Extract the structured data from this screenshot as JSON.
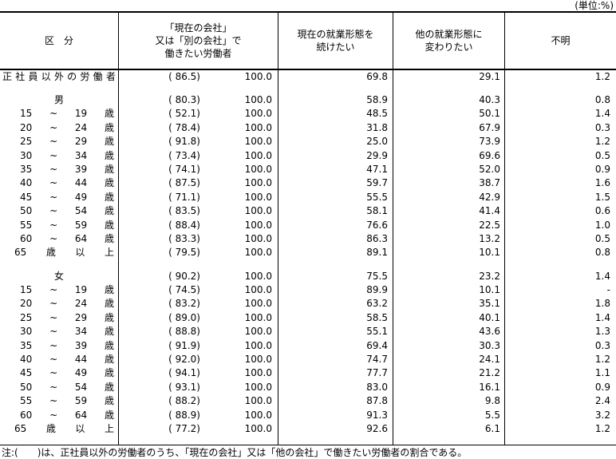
{
  "unit_label": "(単位:%)",
  "colors": {
    "border": "#000000",
    "text": "#000000",
    "background": "#ffffff"
  },
  "header": {
    "category": "区　分",
    "want_work_line1": "「現在の会社」",
    "want_work_line2": "又は「別の会社」で",
    "want_work_line3": "働きたい労働者",
    "continue_line1": "現在の就業形態を",
    "continue_line2": "続けたい",
    "change_line1": "他の就業形態に",
    "change_line2": "変わりたい",
    "unknown": "不明"
  },
  "rows": [
    {
      "type": "data",
      "style": "total",
      "label_parts": [
        "正",
        "社",
        "員",
        "以",
        "外",
        "の",
        "労",
        "働",
        "者"
      ],
      "paren": "( 86.5)",
      "total": "100.0",
      "continue_pct": "69.8",
      "change_pct": "29.1",
      "unknown_pct": "1.2"
    },
    {
      "type": "spacer"
    },
    {
      "type": "data",
      "style": "gender",
      "label_parts": [
        "男"
      ],
      "paren": "( 80.3)",
      "total": "100.0",
      "continue_pct": "58.9",
      "change_pct": "40.3",
      "unknown_pct": "0.8"
    },
    {
      "type": "data",
      "style": "age",
      "label_parts": [
        "15",
        "~",
        "19",
        "歳"
      ],
      "paren": "( 52.1)",
      "total": "100.0",
      "continue_pct": "48.5",
      "change_pct": "50.1",
      "unknown_pct": "1.4"
    },
    {
      "type": "data",
      "style": "age",
      "label_parts": [
        "20",
        "~",
        "24",
        "歳"
      ],
      "paren": "( 78.4)",
      "total": "100.0",
      "continue_pct": "31.8",
      "change_pct": "67.9",
      "unknown_pct": "0.3"
    },
    {
      "type": "data",
      "style": "age",
      "label_parts": [
        "25",
        "~",
        "29",
        "歳"
      ],
      "paren": "( 91.8)",
      "total": "100.0",
      "continue_pct": "25.0",
      "change_pct": "73.9",
      "unknown_pct": "1.2"
    },
    {
      "type": "data",
      "style": "age",
      "label_parts": [
        "30",
        "~",
        "34",
        "歳"
      ],
      "paren": "( 73.4)",
      "total": "100.0",
      "continue_pct": "29.9",
      "change_pct": "69.6",
      "unknown_pct": "0.5"
    },
    {
      "type": "data",
      "style": "age",
      "label_parts": [
        "35",
        "~",
        "39",
        "歳"
      ],
      "paren": "( 74.1)",
      "total": "100.0",
      "continue_pct": "47.1",
      "change_pct": "52.0",
      "unknown_pct": "0.9"
    },
    {
      "type": "data",
      "style": "age",
      "label_parts": [
        "40",
        "~",
        "44",
        "歳"
      ],
      "paren": "( 87.5)",
      "total": "100.0",
      "continue_pct": "59.7",
      "change_pct": "38.7",
      "unknown_pct": "1.6"
    },
    {
      "type": "data",
      "style": "age",
      "label_parts": [
        "45",
        "~",
        "49",
        "歳"
      ],
      "paren": "( 71.1)",
      "total": "100.0",
      "continue_pct": "55.5",
      "change_pct": "42.9",
      "unknown_pct": "1.5"
    },
    {
      "type": "data",
      "style": "age",
      "label_parts": [
        "50",
        "~",
        "54",
        "歳"
      ],
      "paren": "( 83.5)",
      "total": "100.0",
      "continue_pct": "58.1",
      "change_pct": "41.4",
      "unknown_pct": "0.6"
    },
    {
      "type": "data",
      "style": "age",
      "label_parts": [
        "55",
        "~",
        "59",
        "歳"
      ],
      "paren": "( 88.4)",
      "total": "100.0",
      "continue_pct": "76.6",
      "change_pct": "22.5",
      "unknown_pct": "1.0"
    },
    {
      "type": "data",
      "style": "age",
      "label_parts": [
        "60",
        "~",
        "64",
        "歳"
      ],
      "paren": "( 83.3)",
      "total": "100.0",
      "continue_pct": "86.3",
      "change_pct": "13.2",
      "unknown_pct": "0.5"
    },
    {
      "type": "data",
      "style": "age65",
      "label_parts": [
        "65",
        "歳",
        "以",
        "上"
      ],
      "paren": "( 79.5)",
      "total": "100.0",
      "continue_pct": "89.1",
      "change_pct": "10.1",
      "unknown_pct": "0.8"
    },
    {
      "type": "spacer"
    },
    {
      "type": "data",
      "style": "gender",
      "label_parts": [
        "女"
      ],
      "paren": "( 90.2)",
      "total": "100.0",
      "continue_pct": "75.5",
      "change_pct": "23.2",
      "unknown_pct": "1.4"
    },
    {
      "type": "data",
      "style": "age",
      "label_parts": [
        "15",
        "~",
        "19",
        "歳"
      ],
      "paren": "( 74.5)",
      "total": "100.0",
      "continue_pct": "89.9",
      "change_pct": "10.1",
      "unknown_pct": "-"
    },
    {
      "type": "data",
      "style": "age",
      "label_parts": [
        "20",
        "~",
        "24",
        "歳"
      ],
      "paren": "( 83.2)",
      "total": "100.0",
      "continue_pct": "63.2",
      "change_pct": "35.1",
      "unknown_pct": "1.8"
    },
    {
      "type": "data",
      "style": "age",
      "label_parts": [
        "25",
        "~",
        "29",
        "歳"
      ],
      "paren": "( 89.0)",
      "total": "100.0",
      "continue_pct": "58.5",
      "change_pct": "40.1",
      "unknown_pct": "1.4"
    },
    {
      "type": "data",
      "style": "age",
      "label_parts": [
        "30",
        "~",
        "34",
        "歳"
      ],
      "paren": "( 88.8)",
      "total": "100.0",
      "continue_pct": "55.1",
      "change_pct": "43.6",
      "unknown_pct": "1.3"
    },
    {
      "type": "data",
      "style": "age",
      "label_parts": [
        "35",
        "~",
        "39",
        "歳"
      ],
      "paren": "( 91.9)",
      "total": "100.0",
      "continue_pct": "69.4",
      "change_pct": "30.3",
      "unknown_pct": "0.3"
    },
    {
      "type": "data",
      "style": "age",
      "label_parts": [
        "40",
        "~",
        "44",
        "歳"
      ],
      "paren": "( 92.0)",
      "total": "100.0",
      "continue_pct": "74.7",
      "change_pct": "24.1",
      "unknown_pct": "1.2"
    },
    {
      "type": "data",
      "style": "age",
      "label_parts": [
        "45",
        "~",
        "49",
        "歳"
      ],
      "paren": "( 94.1)",
      "total": "100.0",
      "continue_pct": "77.7",
      "change_pct": "21.2",
      "unknown_pct": "1.1"
    },
    {
      "type": "data",
      "style": "age",
      "label_parts": [
        "50",
        "~",
        "54",
        "歳"
      ],
      "paren": "( 93.1)",
      "total": "100.0",
      "continue_pct": "83.0",
      "change_pct": "16.1",
      "unknown_pct": "0.9"
    },
    {
      "type": "data",
      "style": "age",
      "label_parts": [
        "55",
        "~",
        "59",
        "歳"
      ],
      "paren": "( 88.2)",
      "total": "100.0",
      "continue_pct": "87.8",
      "change_pct": "9.8",
      "unknown_pct": "2.4"
    },
    {
      "type": "data",
      "style": "age",
      "label_parts": [
        "60",
        "~",
        "64",
        "歳"
      ],
      "paren": "( 88.9)",
      "total": "100.0",
      "continue_pct": "91.3",
      "change_pct": "5.5",
      "unknown_pct": "3.2"
    },
    {
      "type": "data",
      "style": "age65",
      "label_parts": [
        "65",
        "歳",
        "以",
        "上"
      ],
      "paren": "( 77.2)",
      "total": "100.0",
      "continue_pct": "92.6",
      "change_pct": "6.1",
      "unknown_pct": "1.2"
    },
    {
      "type": "filler"
    }
  ],
  "note": "注:(　　)は、正社員以外の労働者のうち、「現在の会社」又は「他の会社」で働きたい労働者の割合である。"
}
